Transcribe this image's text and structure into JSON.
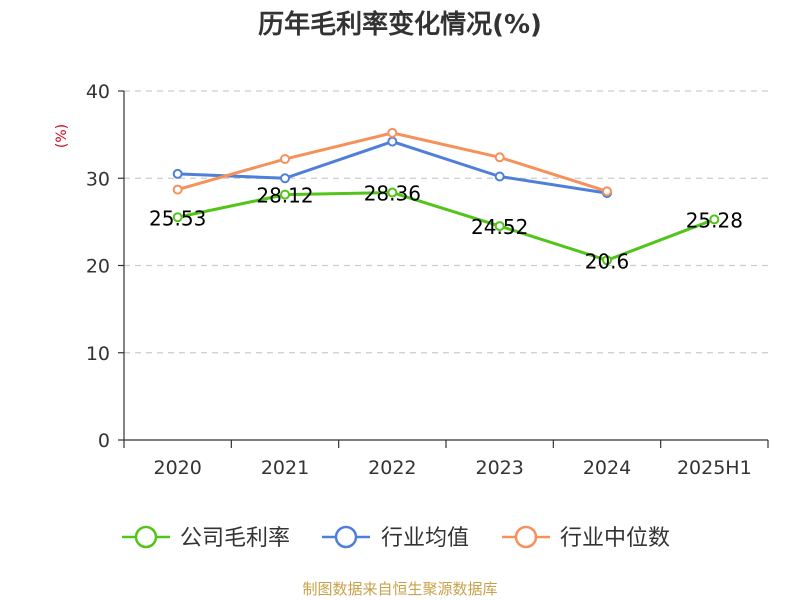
{
  "chart_data": {
    "type": "line",
    "title": "历年毛利率变化情况(%)",
    "ylabel": "(%)",
    "xlabel": "",
    "categories": [
      "2020",
      "2021",
      "2022",
      "2023",
      "2024",
      "2025H1"
    ],
    "ylim": [
      0,
      40
    ],
    "yticks": [
      "0",
      "10",
      "20",
      "30",
      "40"
    ],
    "grid": true,
    "legend_position": "bottom",
    "series": [
      {
        "name": "公司毛利率",
        "color": "#52c41a",
        "values": [
          25.53,
          28.12,
          28.36,
          24.52,
          20.6,
          25.28
        ],
        "labels": [
          "25.53",
          "28.12",
          "28.36",
          "24.52",
          "20.6",
          "25.28"
        ]
      },
      {
        "name": "行业均值",
        "color": "#4e7fd9",
        "values": [
          30.5,
          30.0,
          34.2,
          30.2,
          28.3,
          null
        ]
      },
      {
        "name": "行业中位数",
        "color": "#f5915a",
        "values": [
          28.7,
          32.2,
          35.2,
          32.4,
          28.5,
          null
        ]
      }
    ]
  },
  "footer": {
    "source": "制图数据来自恒生聚源数据库"
  }
}
